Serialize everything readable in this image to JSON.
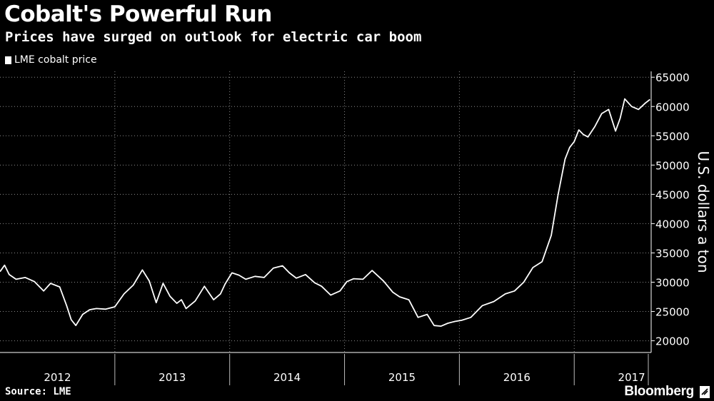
{
  "header": {
    "title": "Cobalt's Powerful Run",
    "subtitle": "Prices have surged on outlook for electric car boom"
  },
  "footer": {
    "source": "Source: LME",
    "brand": "Bloomberg"
  },
  "colors": {
    "background": "#000000",
    "line": "#ffffff",
    "grid": "#8a8a8a"
  },
  "chart_data": {
    "type": "line",
    "title": "Cobalt's Powerful Run",
    "subtitle": "Prices have surged on outlook for electric car boom",
    "xlabel": "",
    "ylabel": "U.S. dollars a ton",
    "legend": [
      "LME cobalt price"
    ],
    "legend_position": "top-left",
    "grid": true,
    "xlim": [
      2012.0,
      2017.67
    ],
    "ylim": [
      18000,
      66000
    ],
    "yticks": [
      20000,
      25000,
      30000,
      35000,
      40000,
      45000,
      50000,
      55000,
      60000,
      65000
    ],
    "x_categories": [
      "2012",
      "2013",
      "2014",
      "2015",
      "2016",
      "2017"
    ],
    "series": [
      {
        "name": "LME cobalt price",
        "x": [
          2012.0,
          2012.04,
          2012.08,
          2012.14,
          2012.22,
          2012.3,
          2012.38,
          2012.44,
          2012.52,
          2012.58,
          2012.62,
          2012.66,
          2012.72,
          2012.78,
          2012.84,
          2012.92,
          2013.0,
          2013.08,
          2013.16,
          2013.24,
          2013.3,
          2013.36,
          2013.42,
          2013.48,
          2013.54,
          2013.58,
          2013.62,
          2013.7,
          2013.78,
          2013.86,
          2013.92,
          2013.96,
          2014.02,
          2014.08,
          2014.14,
          2014.22,
          2014.3,
          2014.38,
          2014.46,
          2014.52,
          2014.58,
          2014.66,
          2014.74,
          2014.8,
          2014.88,
          2014.96,
          2015.02,
          2015.08,
          2015.16,
          2015.24,
          2015.34,
          2015.42,
          2015.48,
          2015.56,
          2015.64,
          2015.72,
          2015.78,
          2015.84,
          2015.9,
          2015.96,
          2016.02,
          2016.1,
          2016.2,
          2016.3,
          2016.4,
          2016.48,
          2016.56,
          2016.64,
          2016.72,
          2016.8,
          2016.86,
          2016.92,
          2016.96,
          2017.0,
          2017.04,
          2017.08,
          2017.12,
          2017.18,
          2017.24,
          2017.3,
          2017.36,
          2017.4,
          2017.44,
          2017.5,
          2017.56,
          2017.62,
          2017.66
        ],
        "values": [
          31800,
          32900,
          31300,
          30500,
          30800,
          30100,
          28500,
          29800,
          29200,
          26000,
          23600,
          22600,
          24500,
          25300,
          25500,
          25400,
          25800,
          28000,
          29500,
          32100,
          30200,
          26500,
          29800,
          27600,
          26400,
          27000,
          25500,
          26800,
          29300,
          27000,
          28000,
          29700,
          31600,
          31200,
          30500,
          31000,
          30800,
          32400,
          32800,
          31600,
          30700,
          31300,
          29900,
          29300,
          27800,
          28500,
          30100,
          30600,
          30500,
          32000,
          30200,
          28300,
          27500,
          27000,
          24000,
          24500,
          22600,
          22500,
          23000,
          23300,
          23500,
          24000,
          26000,
          26700,
          28000,
          28500,
          30000,
          32500,
          33500,
          38000,
          45000,
          51000,
          53000,
          54000,
          56000,
          55200,
          54800,
          56600,
          58800,
          59500,
          55800,
          58000,
          61300,
          60000,
          59500,
          60600,
          61200
        ]
      }
    ]
  }
}
